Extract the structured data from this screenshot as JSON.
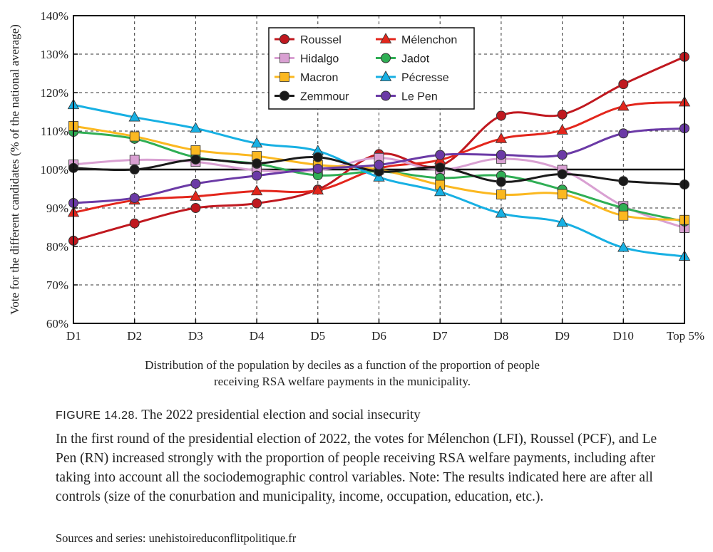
{
  "chart_data": {
    "type": "line",
    "ylabel": "Vote for the different candidates (% of the national average)",
    "xlabel_lines": [
      "Distribution of the population by deciles as a function of the proportion of people",
      "receiving RSA welfare payments in the municipality."
    ],
    "categories": [
      "D1",
      "D2",
      "D3",
      "D4",
      "D5",
      "D6",
      "D7",
      "D8",
      "D9",
      "D10",
      "Top 5%"
    ],
    "ylim": [
      60,
      140
    ],
    "yticks": [
      60,
      70,
      80,
      90,
      100,
      110,
      120,
      130,
      140
    ],
    "ytick_labels": [
      "60%",
      "70%",
      "80%",
      "90%",
      "100%",
      "110%",
      "120%",
      "130%",
      "140%"
    ],
    "reference_line": 100,
    "grid": "dashed",
    "legend_position": "top-center",
    "series": [
      {
        "name": "Roussel",
        "marker": "circle",
        "color": "#c0181f",
        "values": [
          81.5,
          86,
          90,
          91.2,
          94.8,
          104,
          101,
          114,
          114.3,
          122.2,
          129.3
        ]
      },
      {
        "name": "Mélenchon",
        "marker": "triangle",
        "color": "#e3261c",
        "values": [
          88.8,
          92,
          93,
          94.4,
          94.6,
          100.3,
          102.5,
          108,
          110.2,
          116.4,
          117.5
        ]
      },
      {
        "name": "Hidalgo",
        "marker": "square",
        "color": "#d9a0d2",
        "values": [
          101.3,
          102.5,
          102,
          99.8,
          99.8,
          103,
          100,
          102.8,
          99.9,
          90.5,
          84.8
        ]
      },
      {
        "name": "Jadot",
        "marker": "circle",
        "color": "#2fae54",
        "values": [
          109.8,
          108,
          103.2,
          101.5,
          98.5,
          99.5,
          97.8,
          98.4,
          94.8,
          90,
          86.5
        ]
      },
      {
        "name": "Macron",
        "marker": "square",
        "color": "#fbb820",
        "values": [
          111.3,
          108.6,
          105,
          103.5,
          101.2,
          100,
          96,
          93.5,
          93.6,
          88,
          86.9
        ]
      },
      {
        "name": "Pécresse",
        "marker": "triangle",
        "color": "#17b0e3",
        "values": [
          116.8,
          113.6,
          110.7,
          106.8,
          104.8,
          98,
          94.2,
          88.6,
          86.2,
          79.7,
          77.4
        ]
      },
      {
        "name": "Zemmour",
        "marker": "circle",
        "color": "#1a1a1a",
        "values": [
          100.4,
          100,
          102.6,
          101.6,
          103.2,
          99.5,
          100.5,
          96.8,
          98.8,
          97,
          96.1
        ]
      },
      {
        "name": "Le Pen",
        "marker": "circle",
        "color": "#6b3aa6",
        "values": [
          91.3,
          92.6,
          96.3,
          98.4,
          100.2,
          101.2,
          103.8,
          103.8,
          103.8,
          109.4,
          110.7
        ]
      }
    ]
  },
  "figure": {
    "label": "FIGURE 14.28.",
    "title": "The 2022 presidential election and social insecurity",
    "caption": "In the first round of the presidential election of 2022, the votes for Mélenchon (LFI), Roussel (PCF), and Le Pen (RN) increased strongly with the proportion of people receiving RSA welfare payments, including after taking into account all the sociodemographic control variables. Note: The results indicated here are after all controls (size of the conurbation and municipality, income, occupation, education, etc.).",
    "sources": "Sources and series: unehistoireduconflitpolitique.fr"
  }
}
